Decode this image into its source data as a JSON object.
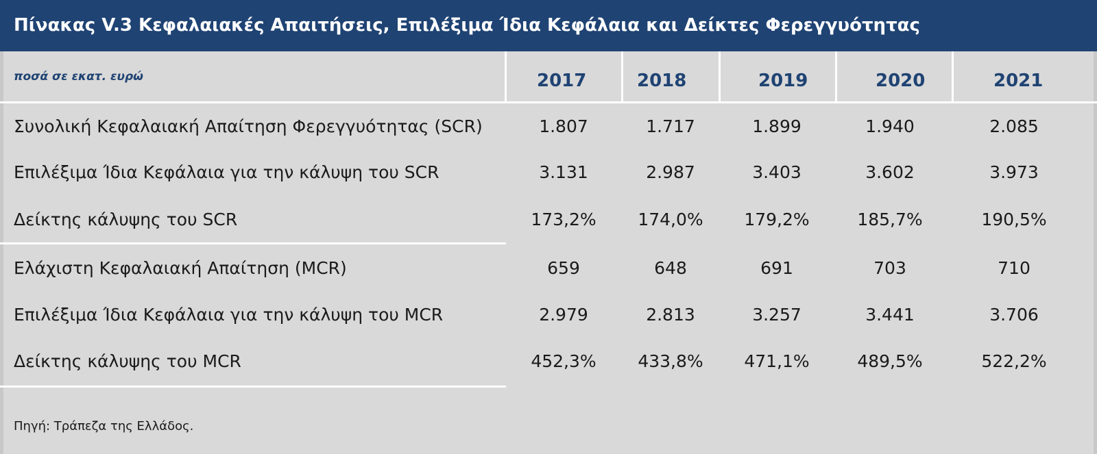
{
  "title": "Πίνακας V.3 Κεφαλαιακές Απαιτήσεις, Επιλέξιμα Ίδια Κεφάλαια και Δείκτες Φερεγγυότητας",
  "units": "ποσά σε εκατ. ευρώ",
  "years": [
    "2017",
    "2018",
    "2019",
    "2020",
    "2021"
  ],
  "rows": [
    {
      "label": "Συνολική Κεφαλαιακή Απαίτηση Φερεγγυότητας (SCR)",
      "values": [
        "1.807",
        "1.717",
        "1.899",
        "1.940",
        "2.085"
      ]
    },
    {
      "label": "Επιλέξιμα Ίδια Κεφάλαια για την κάλυψη του SCR",
      "values": [
        "3.131",
        "2.987",
        "3.403",
        "3.602",
        "3.973"
      ]
    },
    {
      "label": "Δείκτης κάλυψης του SCR",
      "values": [
        "173,2%",
        "174,0%",
        "179,2%",
        "185,7%",
        "190,5%"
      ]
    },
    {
      "label": "Ελάχιστη Κεφαλαιακή Απαίτηση (MCR)",
      "values": [
        "659",
        "648",
        "691",
        "703",
        "710"
      ]
    },
    {
      "label": "Επιλέξιμα Ίδια Κεφάλαια για την κάλυψη του MCR",
      "values": [
        "2.979",
        "2.813",
        "3.257",
        "3.441",
        "3.706"
      ]
    },
    {
      "label": "Δείκτης κάλυψης του MCR",
      "values": [
        "452,3%",
        "433,8%",
        "471,1%",
        "489,5%",
        "522,2%"
      ]
    }
  ],
  "source": "Πηγή: Τράπεζα της Ελλάδος.",
  "colors": {
    "header": "#1f4373",
    "background": "#d9d9d9",
    "accent_text": "#1f4373"
  }
}
